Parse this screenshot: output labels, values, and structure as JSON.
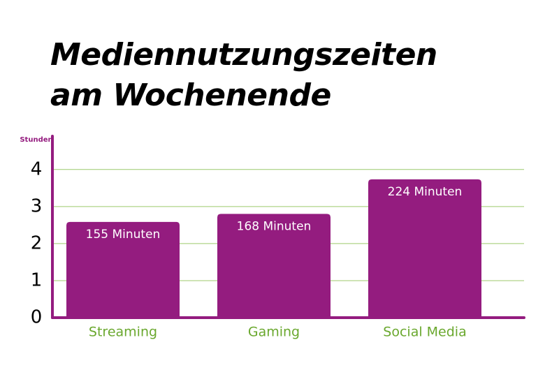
{
  "chart_data": {
    "type": "bar",
    "title": "Mediennutzungszeiten\nam Wochenende",
    "y_label": "Stunden",
    "categories": [
      "Streaming",
      "Gaming",
      "Social Media"
    ],
    "values": [
      2.5833333333,
      2.8,
      3.7333333333
    ],
    "value_labels": [
      "155 Minuten",
      "168 Minuten",
      "224 Minuten"
    ],
    "color": "#941c7f",
    "axis_color": "#941c7f",
    "grid_color": "#9cc96b",
    "category_color": "#6aa82e",
    "ylim": [
      0,
      4.9
    ],
    "yticks": [
      0,
      1,
      2,
      3,
      4
    ],
    "grid": true
  }
}
